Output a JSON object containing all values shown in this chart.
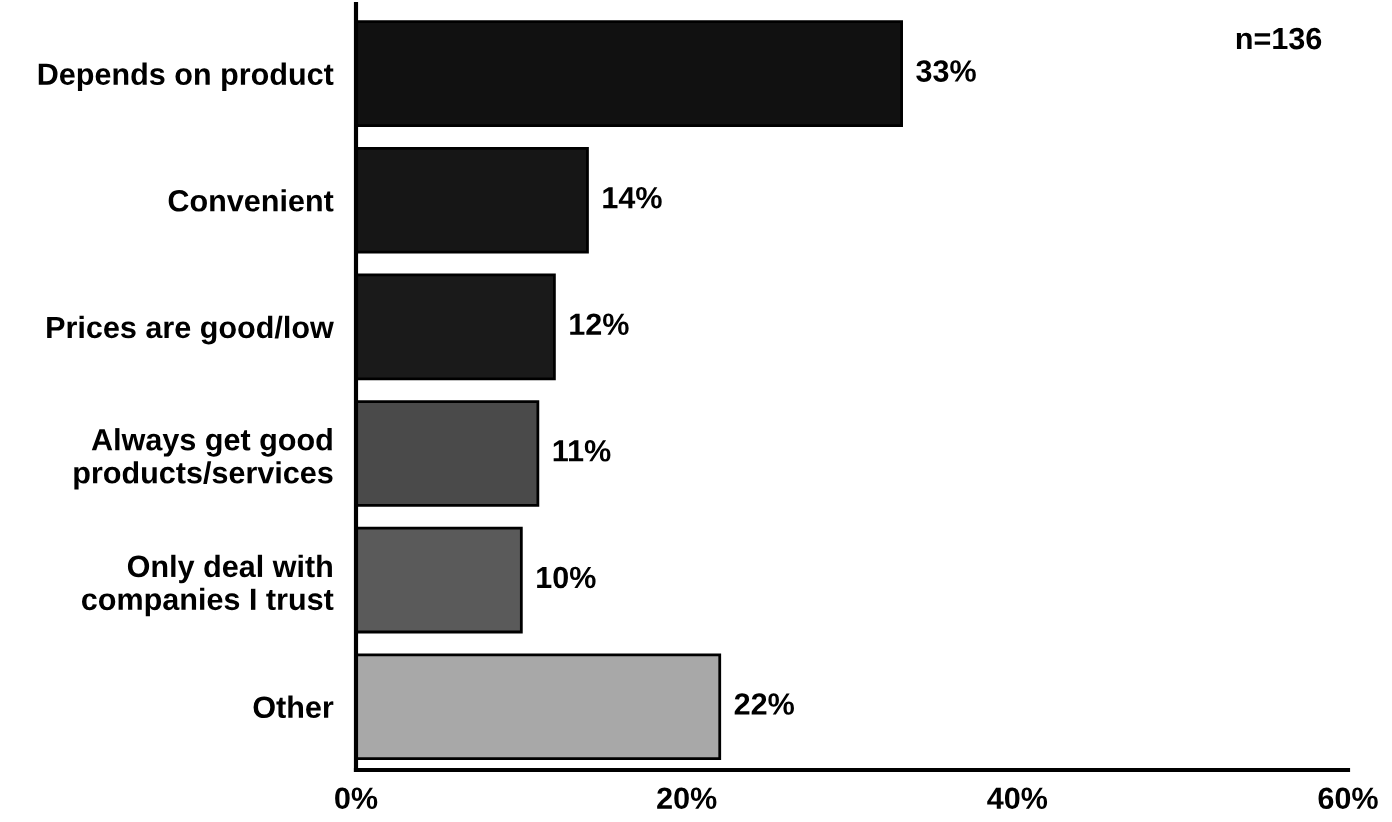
{
  "chart_data": {
    "type": "bar",
    "orientation": "horizontal",
    "categories": [
      "Depends on product",
      "Convenient",
      "Prices are good/low",
      "Always get good\nproducts/services",
      "Only deal with\ncompanies I trust",
      "Other"
    ],
    "values": [
      33,
      14,
      12,
      11,
      10,
      22
    ],
    "colors": [
      "#111111",
      "#161616",
      "#1a1a1a",
      "#4a4a4a",
      "#5a5a5a",
      "#a8a8a8"
    ],
    "value_labels": [
      "33%",
      "14%",
      "12%",
      "11%",
      "10%",
      "22%"
    ],
    "xlim": [
      0,
      60
    ],
    "xticks": [
      {
        "value": 0,
        "label": "0%"
      },
      {
        "value": 20,
        "label": "20%"
      },
      {
        "value": 40,
        "label": "40%"
      },
      {
        "value": 60,
        "label": "60%"
      }
    ],
    "grid": false,
    "annotations": [
      "n=136"
    ]
  }
}
